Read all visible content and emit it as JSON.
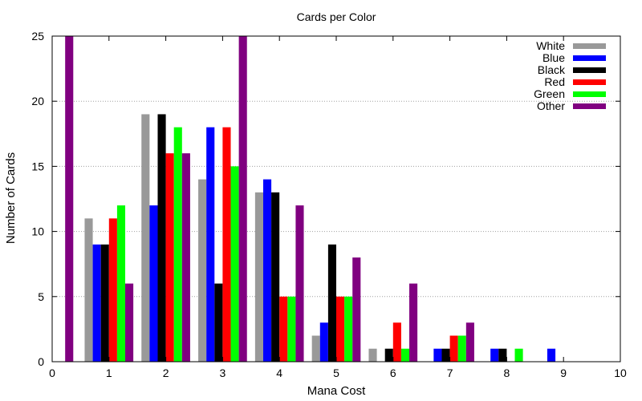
{
  "chart_data": {
    "type": "bar",
    "title": "Cards per Color",
    "xlabel": "Mana Cost",
    "ylabel": "Number of Cards",
    "xlim": [
      0,
      10
    ],
    "ylim": [
      0,
      25
    ],
    "xticks": [
      "0",
      "1",
      "2",
      "3",
      "4",
      "5",
      "6",
      "7",
      "8",
      "9",
      "10"
    ],
    "yticks": [
      "0",
      "5",
      "10",
      "15",
      "20",
      "25"
    ],
    "grid": "horizontal dotted",
    "legend_position": "top-right",
    "categories": [
      1,
      2,
      3,
      4,
      5,
      6,
      7,
      8,
      9
    ],
    "series": [
      {
        "name": "White",
        "color": "#999999",
        "values": [
          11,
          19,
          14,
          13,
          2,
          1,
          0,
          0,
          0
        ]
      },
      {
        "name": "Blue",
        "color": "#0000ff",
        "values": [
          9,
          12,
          18,
          14,
          3,
          0,
          1,
          1,
          1
        ]
      },
      {
        "name": "Black",
        "color": "#000000",
        "values": [
          9,
          19,
          6,
          13,
          9,
          1,
          1,
          1,
          0
        ]
      },
      {
        "name": "Red",
        "color": "#ff0000",
        "values": [
          11,
          16,
          18,
          5,
          5,
          3,
          2,
          0,
          0
        ]
      },
      {
        "name": "Green",
        "color": "#00ff00",
        "values": [
          12,
          18,
          15,
          5,
          5,
          1,
          2,
          1,
          0
        ]
      },
      {
        "name": "Other",
        "color": "#800080",
        "values": [
          6,
          16,
          25,
          12,
          8,
          6,
          3,
          0,
          0
        ]
      }
    ],
    "extra_bars": [
      {
        "series": "Other",
        "x": 0.3,
        "value": 25
      }
    ]
  }
}
